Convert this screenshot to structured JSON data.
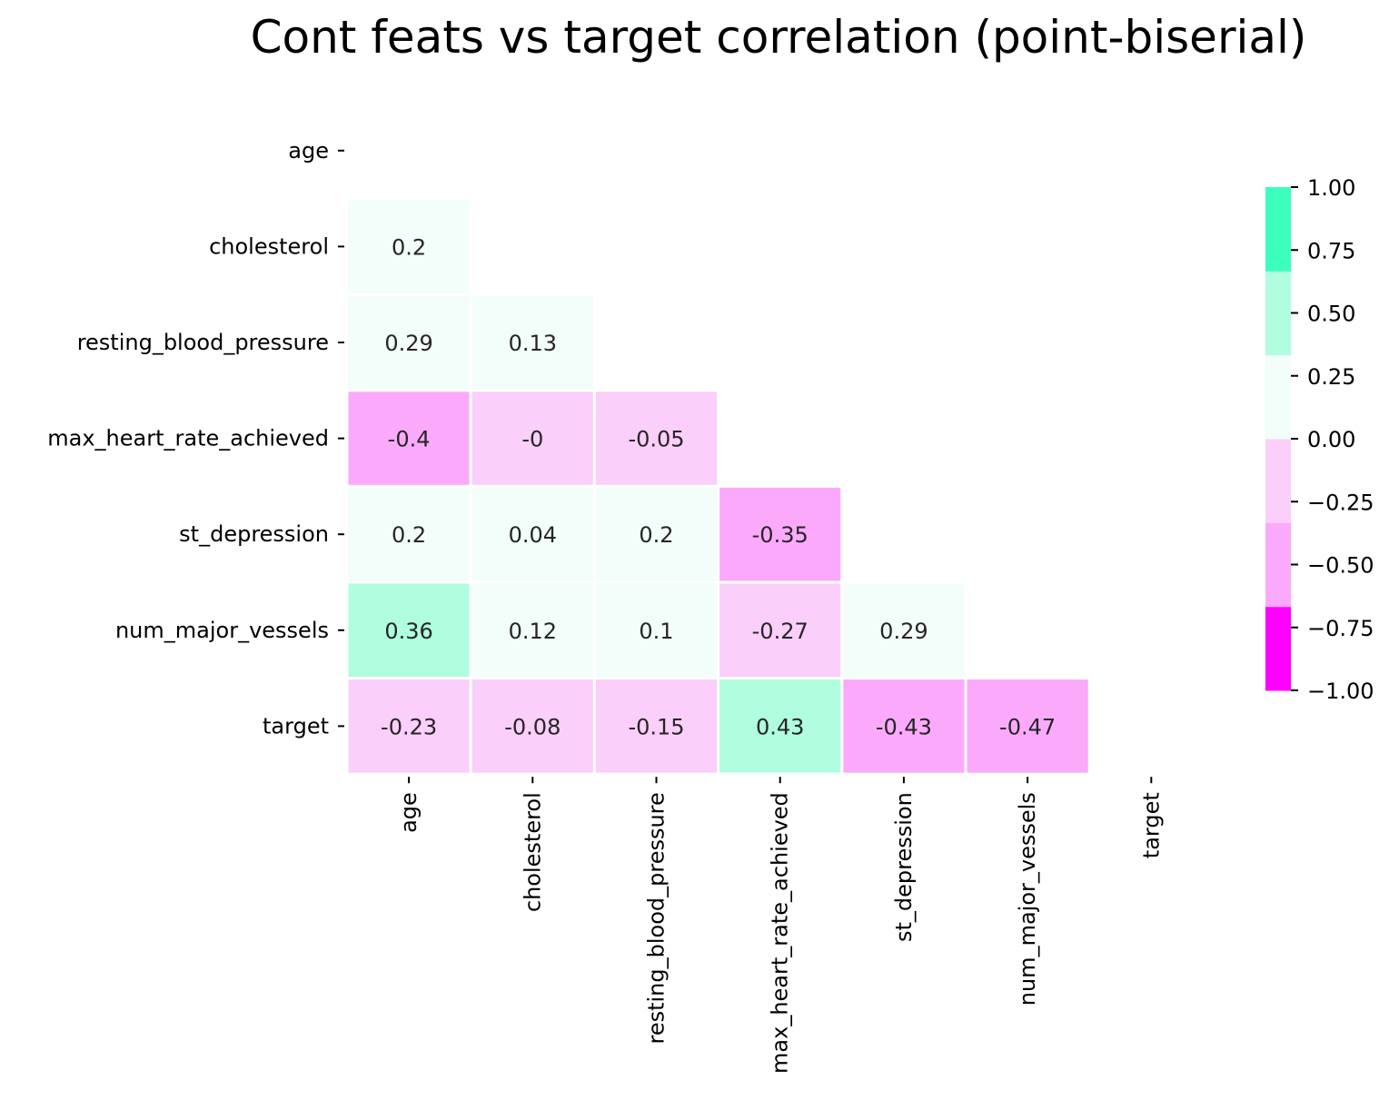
{
  "chart_data": {
    "type": "heatmap",
    "title": "Cont feats vs target correlation (point-biserial)",
    "variables": [
      "age",
      "cholesterol",
      "resting_blood_pressure",
      "max_heart_rate_achieved",
      "st_depression",
      "num_major_vessels",
      "target"
    ],
    "matrix_lower_triangle": [
      [],
      [
        "0.2"
      ],
      [
        "0.29",
        "0.13"
      ],
      [
        "-0.4",
        "-0",
        "-0.05"
      ],
      [
        "0.2",
        "0.04",
        "0.2",
        "-0.35"
      ],
      [
        "0.36",
        "0.12",
        "0.1",
        "-0.27",
        "0.29"
      ],
      [
        "-0.23",
        "-0.08",
        "-0.15",
        "0.43",
        "-0.43",
        "-0.47"
      ]
    ],
    "mask": "upper triangle including diagonal",
    "colorbar": {
      "range": [
        -1.0,
        1.0
      ],
      "ticks": [
        "1.00",
        "0.75",
        "0.50",
        "0.25",
        "0.00",
        "−0.25",
        "−0.50",
        "−0.75",
        "−1.00"
      ],
      "bins": [
        {
          "from": -1.0,
          "to": -0.667,
          "color": "#ff00ff"
        },
        {
          "from": -0.667,
          "to": -0.333,
          "color": "#fbaafb"
        },
        {
          "from": -0.333,
          "to": 0.0,
          "color": "#facff9"
        },
        {
          "from": 0.0,
          "to": 0.333,
          "color": "#f3fdf9"
        },
        {
          "from": 0.333,
          "to": 0.667,
          "color": "#b0fde0"
        },
        {
          "from": 0.667,
          "to": 1.0,
          "color": "#3cffbd"
        }
      ]
    }
  }
}
